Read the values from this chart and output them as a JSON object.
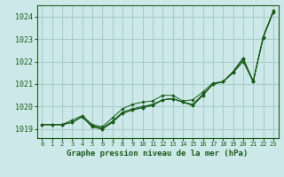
{
  "title": "Graphe pression niveau de la mer (hPa)",
  "background_color": "#cce8e8",
  "grid_color": "#aacccc",
  "line_color": "#1a5c1a",
  "ylim": [
    1018.6,
    1024.5
  ],
  "xlim": [
    -0.5,
    23.5
  ],
  "yticks": [
    1019,
    1020,
    1021,
    1022,
    1023,
    1024
  ],
  "xticks": [
    0,
    1,
    2,
    3,
    4,
    5,
    6,
    7,
    8,
    9,
    10,
    11,
    12,
    13,
    14,
    15,
    16,
    17,
    18,
    19,
    20,
    21,
    22,
    23
  ],
  "series": [
    [
      1019.2,
      1019.2,
      1019.2,
      1019.3,
      1019.55,
      1019.1,
      1019.0,
      1019.3,
      1019.7,
      1019.85,
      1019.95,
      1020.05,
      1020.3,
      1020.35,
      1020.2,
      1020.05,
      1020.5,
      1021.0,
      1021.1,
      1021.55,
      1022.15,
      1021.1,
      1023.1,
      1024.25
    ],
    [
      1019.2,
      1019.2,
      1019.2,
      1019.3,
      1019.55,
      1019.1,
      1019.0,
      1019.3,
      1019.7,
      1019.85,
      1019.95,
      1020.05,
      1020.3,
      1020.35,
      1020.2,
      1020.05,
      1020.5,
      1021.0,
      1021.1,
      1021.55,
      1022.15,
      1021.1,
      1023.1,
      1024.25
    ],
    [
      1019.2,
      1019.2,
      1019.2,
      1019.3,
      1019.55,
      1019.15,
      1019.05,
      1019.35,
      1019.75,
      1019.9,
      1020.0,
      1020.1,
      1020.3,
      1020.35,
      1020.2,
      1020.1,
      1020.55,
      1021.0,
      1021.1,
      1021.5,
      1022.0,
      1021.1,
      1023.05,
      1024.2
    ],
    [
      1019.2,
      1019.2,
      1019.2,
      1019.4,
      1019.6,
      1019.2,
      1019.1,
      1019.5,
      1019.9,
      1020.1,
      1020.2,
      1020.25,
      1020.5,
      1020.5,
      1020.25,
      1020.3,
      1020.65,
      1021.05,
      1021.1,
      1021.5,
      1022.1,
      1021.15,
      1023.1,
      1024.2
    ]
  ]
}
